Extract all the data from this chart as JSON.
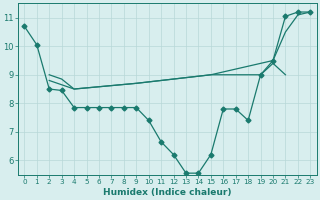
{
  "line1_x": [
    0,
    1,
    2,
    3,
    4,
    5,
    6,
    7,
    8,
    9,
    10,
    11,
    12,
    13,
    14,
    15,
    16,
    17,
    18,
    19,
    20,
    21,
    22,
    23
  ],
  "line1_y": [
    10.7,
    10.05,
    8.5,
    8.45,
    7.85,
    7.85,
    7.85,
    7.85,
    7.85,
    7.85,
    7.4,
    6.65,
    6.2,
    5.55,
    5.55,
    6.2,
    7.8,
    7.8,
    7.4,
    9.0,
    9.5,
    11.05,
    11.2,
    11.2
  ],
  "line2_x": [
    2,
    3,
    4,
    9,
    10,
    11,
    12,
    13,
    14,
    15,
    16,
    17,
    18,
    19,
    20,
    21
  ],
  "line2_y": [
    9.0,
    8.85,
    8.5,
    8.7,
    8.75,
    8.8,
    8.85,
    8.9,
    8.95,
    9.0,
    9.0,
    9.0,
    9.0,
    9.0,
    9.4,
    9.0
  ],
  "line3_x": [
    2,
    4,
    9,
    10,
    15,
    20,
    21,
    22,
    23
  ],
  "line3_y": [
    8.8,
    8.5,
    8.7,
    8.75,
    9.0,
    9.5,
    10.5,
    11.1,
    11.2
  ],
  "bg_color": "#d8eeee",
  "grid_color": "#b8d8d8",
  "line_color": "#1a7a6e",
  "xlabel": "Humidex (Indice chaleur)",
  "xlim": [
    -0.5,
    23.5
  ],
  "ylim": [
    5.5,
    11.5
  ],
  "yticks": [
    6,
    7,
    8,
    9,
    10,
    11
  ],
  "xticks": [
    0,
    1,
    2,
    3,
    4,
    5,
    6,
    7,
    8,
    9,
    10,
    11,
    12,
    13,
    14,
    15,
    16,
    17,
    18,
    19,
    20,
    21,
    22,
    23
  ]
}
